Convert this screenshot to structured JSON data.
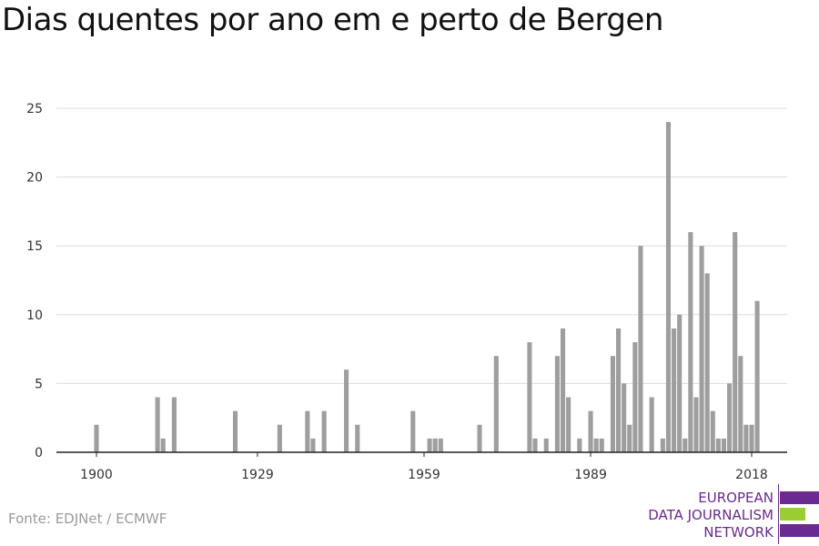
{
  "chart_data": {
    "type": "bar",
    "title": "Dias quentes por ano em e perto de Bergen",
    "xlabel": "",
    "ylabel": "",
    "xlim": [
      1900,
      2018
    ],
    "ylim": [
      0,
      25
    ],
    "yticks": [
      0,
      5,
      10,
      15,
      20,
      25
    ],
    "xticks": [
      1900,
      1929,
      1959,
      1989,
      2018
    ],
    "grid": true,
    "bar_color": "#9e9e9e",
    "x": [
      1900,
      1911,
      1912,
      1914,
      1925,
      1933,
      1938,
      1939,
      1941,
      1945,
      1947,
      1957,
      1960,
      1961,
      1962,
      1969,
      1972,
      1978,
      1979,
      1981,
      1983,
      1984,
      1985,
      1987,
      1989,
      1990,
      1991,
      1993,
      1994,
      1995,
      1996,
      1997,
      1998,
      2000,
      2002,
      2003,
      2004,
      2005,
      2006,
      2007,
      2008,
      2009,
      2010,
      2011,
      2012,
      2013,
      2014,
      2015,
      2016,
      2017,
      2018,
      2019
    ],
    "values": [
      2,
      4,
      1,
      4,
      3,
      2,
      3,
      1,
      3,
      6,
      2,
      3,
      1,
      1,
      1,
      2,
      7,
      8,
      1,
      1,
      7,
      9,
      4,
      1,
      3,
      1,
      1,
      7,
      9,
      5,
      2,
      8,
      15,
      4,
      1,
      24,
      9,
      10,
      1,
      16,
      4,
      15,
      13,
      3,
      1,
      1,
      5,
      16,
      7,
      2,
      2,
      11
    ]
  },
  "footer": {
    "source": "Fonte: EDJNet / ECMWF",
    "logo_lines": [
      "EUROPEAN",
      "DATA JOURNALISM",
      "NETWORK"
    ],
    "logo_purple": "#6a2a8f",
    "logo_green": "#9acd32"
  }
}
